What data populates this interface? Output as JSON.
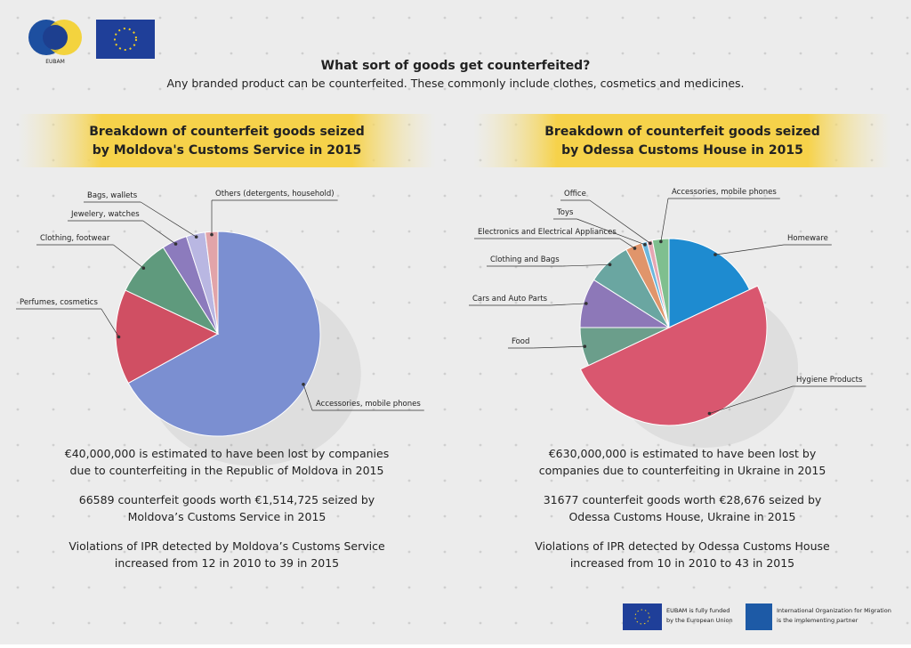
{
  "header": {
    "title": "What sort of goods get counterfeited?",
    "subtitle": "Any branded product can be counterfeited. These commonly include clothes, cosmetics and medicines.",
    "logo_text": "EUBAM"
  },
  "chart_data": [
    {
      "type": "pie",
      "title_lines": [
        "Breakdown of counterfeit goods seized",
        "by Moldova's Customs Service in 2015"
      ],
      "categories": [
        "Accessories, mobile phones",
        "Perfumes, cosmetics",
        "Clothing, footwear",
        "Jewelery, watches",
        "Bags, wallets",
        "Others (detergents, household)"
      ],
      "values": [
        67,
        15,
        9,
        4,
        3,
        2
      ],
      "colors": [
        "#7b8fd1",
        "#d04f63",
        "#5f9a7d",
        "#8c7bbd",
        "#b9b7e2",
        "#e2a4a9"
      ]
    },
    {
      "type": "pie",
      "title_lines": [
        "Breakdown of counterfeit goods seized",
        "by Odessa Customs House in 2015"
      ],
      "categories": [
        "Homeware",
        "Hygiene Products",
        "Food",
        "Cars and Auto Parts",
        "Clothing and Bags",
        "Electronics and Electrical Appliances",
        "Toys",
        "Office",
        "Accessories, mobile phones"
      ],
      "values": [
        18,
        50,
        7,
        9,
        8,
        3,
        1,
        1,
        3
      ],
      "colors": [
        "#1e8bd0",
        "#d9576f",
        "#6b9e8b",
        "#8d78b8",
        "#6aa6a1",
        "#e0956b",
        "#6bb7dd",
        "#e6a7b3",
        "#7fbf8f"
      ]
    }
  ],
  "facts": [
    [
      [
        "€40,000,000 is estimated to have been lost by companies",
        "due to counterfeiting in the Republic of Moldova in 2015"
      ],
      [
        "66589 counterfeit goods worth €1,514,725 seized by",
        "Moldova’s Customs Service in 2015"
      ],
      [
        "Violations of IPR detected by Moldova’s Customs Service",
        "increased from 12 in 2010 to 39 in 2015"
      ]
    ],
    [
      [
        "€630,000,000 is estimated to have been lost by",
        "companies due to counterfeiting in Ukraine in 2015"
      ],
      [
        "31677 counterfeit goods worth €28,676 seized by",
        "Odessa Customs House, Ukraine in 2015"
      ],
      [
        "Violations of IPR detected by Odessa Customs House",
        "increased from 10 in 2010 to 43 in 2015"
      ]
    ]
  ],
  "footer": {
    "eu": [
      "EUBAM is fully funded",
      "by the European Union"
    ],
    "iom": [
      "International Organization for Migration",
      "is the implementing partner"
    ]
  }
}
